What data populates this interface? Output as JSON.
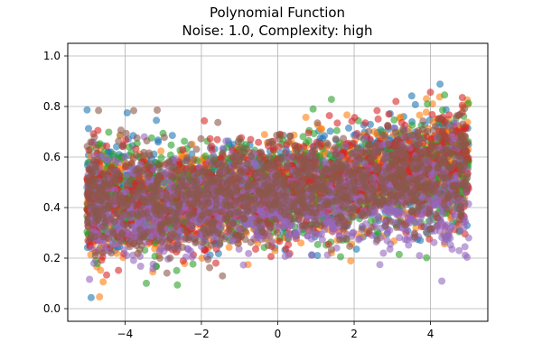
{
  "chart_data": {
    "type": "scatter",
    "title": "Polynomial Function",
    "subtitle": "Noise: 1.0, Complexity: high",
    "xlabel": "",
    "ylabel": "",
    "xlim": [
      -5.5,
      5.5
    ],
    "ylim": [
      -0.05,
      1.05
    ],
    "x_ticks": [
      -4,
      -2,
      0,
      2,
      4
    ],
    "x_tick_labels": [
      "−4",
      "−2",
      "0",
      "2",
      "4"
    ],
    "y_ticks": [
      0.0,
      0.2,
      0.4,
      0.6,
      0.8,
      1.0
    ],
    "y_tick_labels": [
      "0.0",
      "0.2",
      "0.4",
      "0.6",
      "0.8",
      "1.0"
    ],
    "grid": true,
    "legend": "none",
    "marker_alpha": 0.6,
    "x_range": [
      -5,
      5
    ],
    "series": [
      {
        "color": "#1f77b4",
        "points": 1200,
        "mean": [
          0.46,
          0.42,
          0.45,
          0.47,
          0.54,
          0.58
        ],
        "spread": [
          0.12,
          0.1,
          0.09,
          0.09,
          0.1,
          0.12
        ]
      },
      {
        "color": "#ff7f0e",
        "points": 1200,
        "mean": [
          0.44,
          0.41,
          0.44,
          0.48,
          0.53,
          0.57
        ],
        "spread": [
          0.12,
          0.1,
          0.09,
          0.09,
          0.1,
          0.12
        ]
      },
      {
        "color": "#2ca02c",
        "points": 1200,
        "mean": [
          0.45,
          0.42,
          0.45,
          0.47,
          0.52,
          0.56
        ],
        "spread": [
          0.12,
          0.1,
          0.09,
          0.09,
          0.1,
          0.12
        ]
      },
      {
        "color": "#d62728",
        "points": 1200,
        "mean": [
          0.43,
          0.42,
          0.44,
          0.48,
          0.54,
          0.57
        ],
        "spread": [
          0.12,
          0.1,
          0.09,
          0.09,
          0.1,
          0.12
        ]
      },
      {
        "color": "#9467bd",
        "points": 1200,
        "mean": [
          0.4,
          0.39,
          0.41,
          0.43,
          0.47,
          0.42
        ],
        "spread": [
          0.11,
          0.1,
          0.09,
          0.09,
          0.1,
          0.12
        ]
      },
      {
        "color": "#8c564b",
        "points": 1200,
        "mean": [
          0.44,
          0.42,
          0.45,
          0.48,
          0.53,
          0.56
        ],
        "spread": [
          0.12,
          0.1,
          0.09,
          0.09,
          0.1,
          0.12
        ]
      }
    ]
  }
}
